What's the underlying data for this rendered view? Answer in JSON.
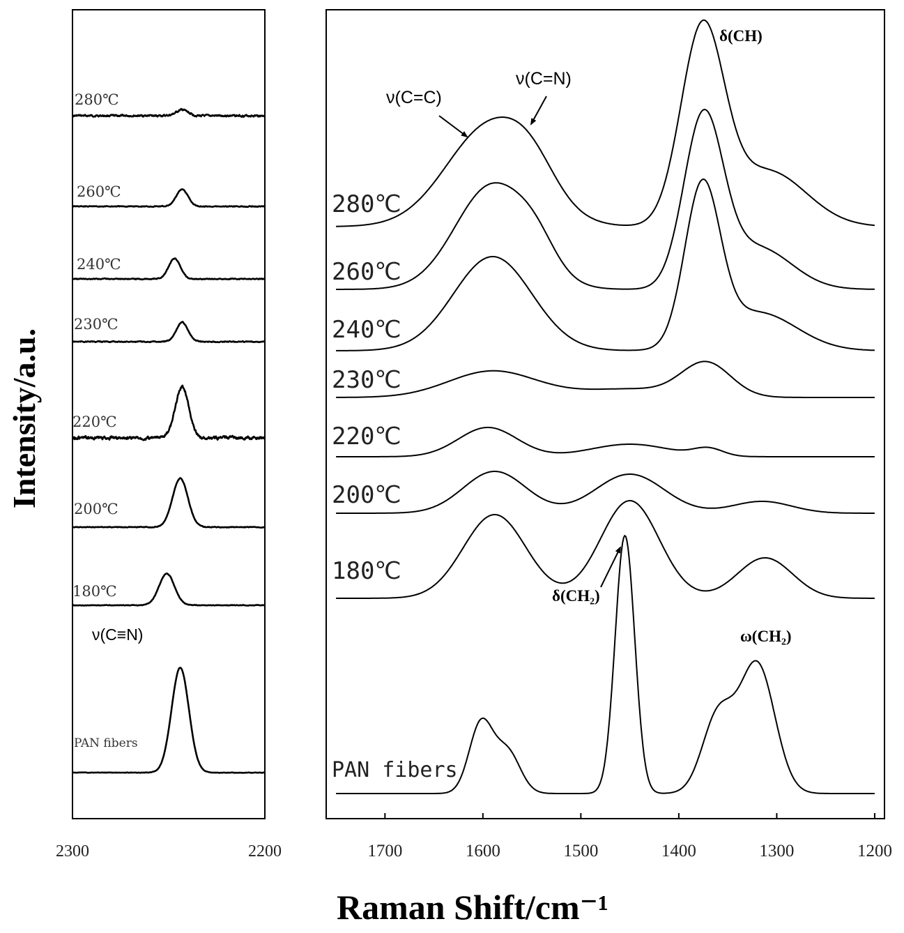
{
  "chart_data": {
    "type": "line",
    "ylabel": "Intensity/a.u.",
    "xlabel": "Raman Shift/cm⁻¹",
    "panels": [
      {
        "id": "left",
        "xlim": [
          2300,
          2200
        ],
        "xticks": [
          2300,
          2200
        ],
        "series": [
          {
            "name": "280℃",
            "baseline": 0,
            "peaks": [
              {
                "center": 2243,
                "height": 0.12,
                "width": 3
              }
            ]
          },
          {
            "name": "260℃",
            "baseline": 0,
            "peaks": [
              {
                "center": 2243,
                "height": 0.35,
                "width": 3
              }
            ]
          },
          {
            "name": "240℃",
            "baseline": 0,
            "peaks": [
              {
                "center": 2247,
                "height": 0.42,
                "width": 3
              }
            ]
          },
          {
            "name": "230℃",
            "baseline": 0,
            "peaks": [
              {
                "center": 2243,
                "height": 0.4,
                "width": 3
              }
            ]
          },
          {
            "name": "220℃",
            "baseline": 0,
            "peaks": [
              {
                "center": 2243,
                "height": 1.05,
                "width": 3.5
              }
            ]
          },
          {
            "name": "200℃",
            "baseline": 0,
            "peaks": [
              {
                "center": 2244,
                "height": 1.0,
                "width": 4
              }
            ]
          },
          {
            "name": "180℃",
            "baseline": 0,
            "peaks": [
              {
                "center": 2251,
                "height": 0.65,
                "width": 4
              }
            ]
          },
          {
            "name": "PAN fibers",
            "baseline": 0,
            "peaks": [
              {
                "center": 2244,
                "height": 2.15,
                "width": 4.5
              }
            ]
          }
        ],
        "annotations": [
          {
            "text": "ν(C≡N)"
          }
        ]
      },
      {
        "id": "right",
        "xlim": [
          1760,
          1190
        ],
        "xticks": [
          1700,
          1600,
          1500,
          1400,
          1300,
          1200
        ],
        "series": [
          {
            "name": "280℃",
            "peaks": [
              {
                "center": 1592,
                "height": 1.45,
                "width": 45
              },
              {
                "center": 1550,
                "height": 0.35,
                "width": 25
              },
              {
                "center": 1376,
                "height": 2.75,
                "width": 22
              },
              {
                "center": 1310,
                "height": 0.8,
                "width": 40
              }
            ]
          },
          {
            "name": "260℃",
            "peaks": [
              {
                "center": 1590,
                "height": 1.5,
                "width": 38
              },
              {
                "center": 1545,
                "height": 0.3,
                "width": 20
              },
              {
                "center": 1375,
                "height": 2.4,
                "width": 20
              },
              {
                "center": 1320,
                "height": 0.6,
                "width": 35
              }
            ]
          },
          {
            "name": "240℃",
            "peaks": [
              {
                "center": 1590,
                "height": 1.35,
                "width": 40
              },
              {
                "center": 1376,
                "height": 2.25,
                "width": 18
              },
              {
                "center": 1320,
                "height": 0.55,
                "width": 40
              }
            ]
          },
          {
            "name": "230℃",
            "peaks": [
              {
                "center": 1590,
                "height": 0.38,
                "width": 45
              },
              {
                "center": 1450,
                "height": 0.12,
                "width": 50
              },
              {
                "center": 1372,
                "height": 0.48,
                "width": 25
              }
            ]
          },
          {
            "name": "220℃",
            "peaks": [
              {
                "center": 1595,
                "height": 0.42,
                "width": 30
              },
              {
                "center": 1450,
                "height": 0.18,
                "width": 40
              },
              {
                "center": 1370,
                "height": 0.11,
                "width": 15
              }
            ]
          },
          {
            "name": "200℃",
            "peaks": [
              {
                "center": 1588,
                "height": 0.6,
                "width": 32
              },
              {
                "center": 1450,
                "height": 0.56,
                "width": 35
              },
              {
                "center": 1315,
                "height": 0.17,
                "width": 30
              }
            ]
          },
          {
            "name": "180℃",
            "peaks": [
              {
                "center": 1588,
                "height": 1.2,
                "width": 32
              },
              {
                "center": 1450,
                "height": 1.4,
                "width": 30
              },
              {
                "center": 1312,
                "height": 0.58,
                "width": 28
              }
            ]
          },
          {
            "name": "PAN fibers",
            "peaks": [
              {
                "center": 1602,
                "height": 1.0,
                "width": 12
              },
              {
                "center": 1575,
                "height": 0.6,
                "width": 13
              },
              {
                "center": 1455,
                "height": 3.7,
                "width": 10
              },
              {
                "center": 1360,
                "height": 1.1,
                "width": 16
              },
              {
                "center": 1320,
                "height": 1.85,
                "width": 18
              }
            ]
          }
        ],
        "annotations": [
          {
            "text": "ν(C=C)"
          },
          {
            "text": "ν(C=N)"
          },
          {
            "text": "δ(CH)"
          },
          {
            "text": "δ(CH₂)"
          },
          {
            "text": "ω(CH₂)"
          }
        ]
      }
    ]
  }
}
